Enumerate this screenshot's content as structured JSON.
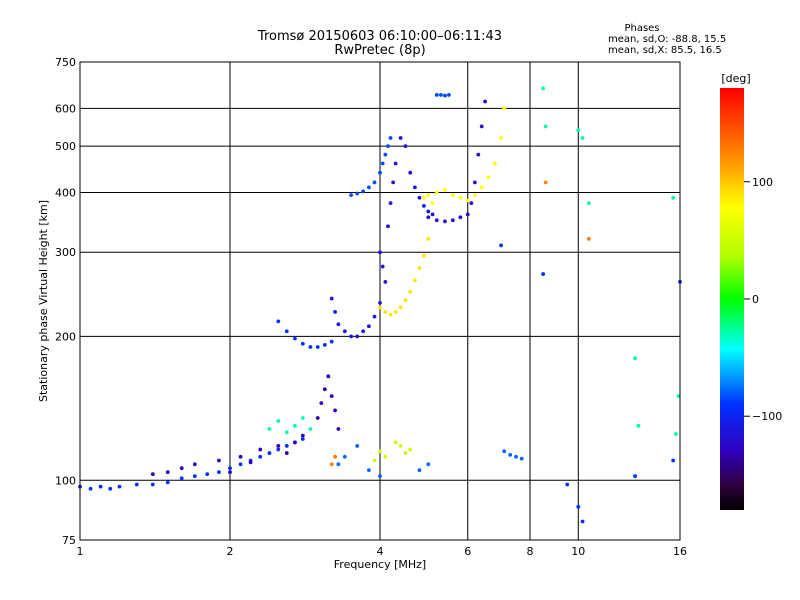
{
  "chart_data": {
    "type": "scatter",
    "title": "Tromsø 20150603 06:10:00–06:11:43",
    "subtitle": "RwPretec (8p)",
    "stats": {
      "heading": "Phases",
      "o_line": "mean, sd,O: -88.8, 15.5",
      "x_line": "mean, sd,X:  85.5, 16.5"
    },
    "xlabel": "Frequency [MHz]",
    "ylabel": "Stationary phase Virtual Height [km]",
    "x_scale": "log",
    "y_scale": "log",
    "xlim": [
      1,
      16
    ],
    "ylim": [
      75,
      750
    ],
    "x_ticks": [
      1,
      2,
      4,
      6,
      8,
      10,
      16
    ],
    "y_ticks": [
      75,
      100,
      200,
      300,
      400,
      500,
      600,
      750
    ],
    "x_grid": [
      2,
      4,
      6,
      8,
      10
    ],
    "y_grid": [
      100,
      200,
      300,
      400,
      500,
      600
    ],
    "colorbar": {
      "label": "[deg]",
      "range": [
        -180,
        180
      ],
      "ticks": [
        {
          "value": 100,
          "label": "100"
        },
        {
          "value": 0,
          "label": "0"
        },
        {
          "value": -100,
          "label": "−100"
        }
      ]
    },
    "series": [
      {
        "x": [
          1.0,
          1.05,
          1.1,
          1.15,
          1.2,
          1.3,
          1.4,
          1.5,
          1.6,
          1.7,
          1.8,
          1.9,
          2.0,
          2.1,
          2.2,
          2.3,
          2.4,
          2.5,
          2.6,
          2.7,
          2.8
        ],
        "y": [
          97,
          96,
          97,
          96,
          97,
          98,
          98,
          99,
          101,
          102,
          103,
          104,
          106,
          108,
          110,
          112,
          114,
          116,
          118,
          120,
          122
        ],
        "phase": -100
      },
      {
        "x": [
          1.4,
          1.5,
          1.6,
          1.7,
          1.9,
          2.0,
          2.1,
          2.2,
          2.3,
          2.5,
          2.6,
          2.7,
          2.8
        ],
        "y": [
          103,
          104,
          106,
          108,
          110,
          104,
          112,
          109,
          116,
          118,
          114,
          120,
          124
        ],
        "phase": -120
      },
      {
        "x": [
          2.4,
          2.5,
          2.6,
          2.7,
          2.8,
          2.9
        ],
        "y": [
          128,
          133,
          126,
          130,
          135,
          128
        ],
        "phase": -40
      },
      {
        "x": [
          3.0,
          3.05,
          3.1,
          3.15,
          3.2,
          3.25,
          3.3
        ],
        "y": [
          135,
          145,
          155,
          165,
          150,
          140,
          128
        ],
        "phase": -120
      },
      {
        "x": [
          2.5,
          2.6,
          2.7,
          2.8,
          2.9,
          3.0,
          3.1,
          3.2
        ],
        "y": [
          215,
          205,
          198,
          193,
          190,
          190,
          192,
          195
        ],
        "phase": -100
      },
      {
        "x": [
          3.2,
          3.25,
          3.3,
          3.4,
          3.5,
          3.6,
          3.7,
          3.8,
          3.9,
          4.0
        ],
        "y": [
          240,
          225,
          212,
          205,
          200,
          200,
          205,
          210,
          220,
          235
        ],
        "phase": -110
      },
      {
        "x": [
          3.5,
          3.6,
          3.7,
          3.8,
          3.9,
          4.0,
          4.05,
          4.1,
          4.15,
          4.2
        ],
        "y": [
          395,
          398,
          402,
          410,
          420,
          440,
          460,
          480,
          500,
          520
        ],
        "phase": -95
      },
      {
        "x": [
          4.0,
          4.05,
          4.1,
          4.15,
          4.2,
          4.25,
          4.3,
          4.4,
          4.5,
          4.6,
          4.7,
          4.8,
          4.9,
          5.0,
          5.1
        ],
        "y": [
          300,
          280,
          260,
          340,
          380,
          420,
          460,
          520,
          500,
          440,
          410,
          390,
          375,
          365,
          360
        ],
        "phase": -110
      },
      {
        "x": [
          4.0,
          4.1,
          4.2,
          4.3,
          4.4,
          4.5,
          4.6,
          4.7,
          4.8,
          4.9,
          5.0
        ],
        "y": [
          230,
          225,
          222,
          225,
          230,
          238,
          248,
          262,
          278,
          295,
          320
        ],
        "phase": 110
      },
      {
        "x": [
          5.0,
          5.2,
          5.4,
          5.6,
          5.8,
          6.0,
          6.1,
          6.2,
          6.3,
          6.4,
          6.5
        ],
        "y": [
          355,
          350,
          348,
          350,
          355,
          360,
          380,
          420,
          480,
          550,
          620
        ],
        "phase": -115
      },
      {
        "x": [
          4.9,
          5.0,
          5.1,
          5.2,
          5.4,
          5.6,
          5.8,
          6.0,
          6.2,
          6.4,
          6.6,
          6.8,
          7.0,
          7.1
        ],
        "y": [
          390,
          395,
          380,
          400,
          405,
          395,
          390,
          385,
          395,
          410,
          430,
          460,
          520,
          600
        ],
        "phase": 100
      },
      {
        "x": [
          5.2,
          5.3,
          5.4,
          5.5
        ],
        "y": [
          640,
          640,
          638,
          640
        ],
        "phase": -95
      },
      {
        "x": [
          3.9,
          4.0,
          4.1,
          4.3,
          4.4,
          4.5,
          4.6
        ],
        "y": [
          110,
          115,
          112,
          120,
          118,
          114,
          116
        ],
        "phase": 60
      },
      {
        "x": [
          3.3,
          3.4,
          3.6,
          3.8,
          4.0,
          4.8,
          5.0,
          7.1,
          7.3,
          7.5,
          7.7
        ],
        "y": [
          108,
          112,
          118,
          105,
          102,
          105,
          108,
          115,
          113,
          112,
          111
        ],
        "phase": -90
      },
      {
        "x": [
          8.5,
          8.6,
          10.0,
          10.2,
          10.5,
          13.0,
          13.2,
          15.5,
          15.7,
          15.9
        ],
        "y": [
          660,
          550,
          540,
          520,
          380,
          180,
          130,
          390,
          125,
          150
        ],
        "phase": -40
      },
      {
        "x": [
          7.0,
          8.5,
          9.5,
          10.0,
          10.2,
          13.0,
          15.5,
          16.0
        ],
        "y": [
          310,
          270,
          98,
          88,
          82,
          102,
          110,
          260
        ],
        "phase": -100
      },
      {
        "x": [
          8.6,
          10.5,
          3.2,
          3.25
        ],
        "y": [
          420,
          320,
          108,
          112
        ],
        "phase": 150
      }
    ]
  }
}
